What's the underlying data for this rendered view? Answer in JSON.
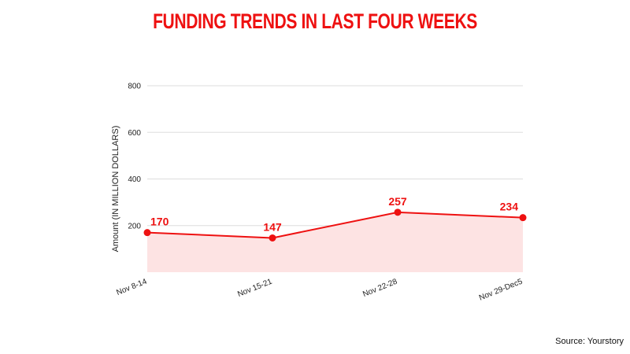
{
  "chart_data": {
    "type": "area",
    "title": "FUNDING TRENDS IN LAST FOUR WEEKS",
    "xlabel": "",
    "ylabel": "Amount (IN MILLION DOLLARS)",
    "categories": [
      "Nov 8-14",
      "Nov 15-21",
      "Nov 22-28",
      "Nov 29-Dec5"
    ],
    "series": [
      {
        "values": [
          170,
          147,
          257,
          234
        ]
      }
    ],
    "data_labels": [
      "170",
      "147",
      "257",
      "234"
    ],
    "y_ticks": [
      200,
      400,
      600,
      800
    ],
    "y_tick_labels": [
      "200",
      "400",
      "600",
      "800"
    ],
    "ylim": [
      0,
      800
    ],
    "grid": true,
    "legend": "none",
    "colors": {
      "line": "#ee1111",
      "fill": "#fde3e3",
      "grid": "#dddddd",
      "title": "#ee1111"
    }
  },
  "source_text": "Source: Yourstory"
}
